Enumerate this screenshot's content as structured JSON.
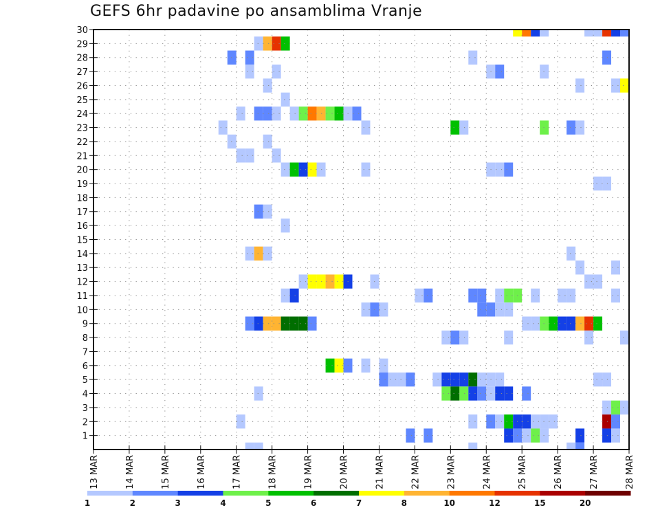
{
  "chart_data": {
    "type": "heatmap",
    "title": "GEFS 6hr padavine po ansamblima Vranje",
    "xlabel": "",
    "ylabel": "",
    "x_tick_labels": [
      "13 MAR",
      "14 MAR",
      "15 MAR",
      "16 MAR",
      "17 MAR",
      "18 MAR",
      "19 MAR",
      "20 MAR",
      "21 MAR",
      "22 MAR",
      "23 MAR",
      "24 MAR",
      "25 MAR",
      "26 MAR",
      "27 MAR",
      "28 MAR"
    ],
    "x_step_hours": 6,
    "x_slots": 60,
    "y_tick_labels": [
      "1",
      "2",
      "3",
      "4",
      "5",
      "6",
      "7",
      "8",
      "9",
      "10",
      "11",
      "12",
      "13",
      "14",
      "15",
      "16",
      "17",
      "18",
      "19",
      "20",
      "21",
      "22",
      "23",
      "24",
      "25",
      "26",
      "27",
      "28",
      "29",
      "30"
    ],
    "ylim": [
      0,
      30
    ],
    "grid": true,
    "colorbar": {
      "placement": "bottom",
      "labels": [
        "1",
        "2",
        "3",
        "4",
        "5",
        "6",
        "7",
        "8",
        "10",
        "12",
        "15",
        "20"
      ],
      "colors": [
        "#b4c8ff",
        "#5f87ff",
        "#1440e6",
        "#6ef04a",
        "#00c000",
        "#006e00",
        "#ffff00",
        "#ffb432",
        "#ff7800",
        "#e63200",
        "#aa0000",
        "#6e0000"
      ]
    },
    "cells_note": "each cell: [time_slot_index (6h steps from 13 MAR 00Z), ensemble_member_row, color_level_index]",
    "cells": [
      [
        47,
        30,
        6
      ],
      [
        48,
        30,
        8
      ],
      [
        49,
        30,
        2
      ],
      [
        50,
        30,
        0
      ],
      [
        55,
        30,
        0
      ],
      [
        56,
        30,
        0
      ],
      [
        57,
        30,
        9
      ],
      [
        58,
        30,
        2
      ],
      [
        59,
        30,
        1
      ],
      [
        18,
        29,
        0
      ],
      [
        19,
        29,
        7
      ],
      [
        20,
        29,
        9
      ],
      [
        21,
        29,
        4
      ],
      [
        15,
        28,
        1
      ],
      [
        17,
        28,
        1
      ],
      [
        42,
        28,
        0
      ],
      [
        57,
        28,
        1
      ],
      [
        17,
        27,
        0
      ],
      [
        20,
        27,
        0
      ],
      [
        44,
        27,
        0
      ],
      [
        45,
        27,
        1
      ],
      [
        50,
        27,
        0
      ],
      [
        19,
        26,
        0
      ],
      [
        54,
        26,
        0
      ],
      [
        58,
        26,
        0
      ],
      [
        59,
        26,
        6
      ],
      [
        21,
        25,
        0
      ],
      [
        16,
        24,
        0
      ],
      [
        18,
        24,
        1
      ],
      [
        19,
        24,
        1
      ],
      [
        20,
        24,
        0
      ],
      [
        22,
        24,
        0
      ],
      [
        23,
        24,
        3
      ],
      [
        24,
        24,
        8
      ],
      [
        25,
        24,
        7
      ],
      [
        26,
        24,
        3
      ],
      [
        27,
        24,
        4
      ],
      [
        28,
        24,
        0
      ],
      [
        29,
        24,
        1
      ],
      [
        14,
        23,
        0
      ],
      [
        30,
        23,
        0
      ],
      [
        40,
        23,
        4
      ],
      [
        41,
        23,
        0
      ],
      [
        50,
        23,
        3
      ],
      [
        53,
        23,
        1
      ],
      [
        54,
        23,
        0
      ],
      [
        15,
        22,
        0
      ],
      [
        19,
        22,
        0
      ],
      [
        16,
        21,
        0
      ],
      [
        17,
        21,
        0
      ],
      [
        20,
        21,
        0
      ],
      [
        21,
        20,
        0
      ],
      [
        22,
        20,
        4
      ],
      [
        23,
        20,
        2
      ],
      [
        24,
        20,
        6
      ],
      [
        25,
        20,
        0
      ],
      [
        30,
        20,
        0
      ],
      [
        44,
        20,
        0
      ],
      [
        45,
        20,
        0
      ],
      [
        46,
        20,
        1
      ],
      [
        56,
        19,
        0
      ],
      [
        57,
        19,
        0
      ],
      [
        18,
        17,
        1
      ],
      [
        19,
        17,
        0
      ],
      [
        21,
        16,
        0
      ],
      [
        17,
        14,
        0
      ],
      [
        18,
        14,
        7
      ],
      [
        19,
        14,
        0
      ],
      [
        53,
        14,
        0
      ],
      [
        54,
        13,
        0
      ],
      [
        58,
        13,
        0
      ],
      [
        23,
        12,
        0
      ],
      [
        24,
        12,
        6
      ],
      [
        25,
        12,
        6
      ],
      [
        26,
        12,
        7
      ],
      [
        27,
        12,
        6
      ],
      [
        28,
        12,
        2
      ],
      [
        31,
        12,
        0
      ],
      [
        55,
        12,
        0
      ],
      [
        56,
        12,
        0
      ],
      [
        21,
        11,
        0
      ],
      [
        22,
        11,
        2
      ],
      [
        36,
        11,
        0
      ],
      [
        37,
        11,
        1
      ],
      [
        42,
        11,
        1
      ],
      [
        43,
        11,
        1
      ],
      [
        45,
        11,
        0
      ],
      [
        46,
        11,
        3
      ],
      [
        47,
        11,
        3
      ],
      [
        49,
        11,
        0
      ],
      [
        52,
        11,
        0
      ],
      [
        53,
        11,
        0
      ],
      [
        58,
        11,
        0
      ],
      [
        30,
        10,
        0
      ],
      [
        31,
        10,
        1
      ],
      [
        32,
        10,
        0
      ],
      [
        43,
        10,
        1
      ],
      [
        44,
        10,
        1
      ],
      [
        45,
        10,
        0
      ],
      [
        46,
        10,
        0
      ],
      [
        17,
        9,
        1
      ],
      [
        18,
        9,
        2
      ],
      [
        19,
        9,
        7
      ],
      [
        20,
        9,
        7
      ],
      [
        21,
        9,
        5
      ],
      [
        22,
        9,
        5
      ],
      [
        23,
        9,
        5
      ],
      [
        24,
        9,
        1
      ],
      [
        48,
        9,
        0
      ],
      [
        49,
        9,
        0
      ],
      [
        50,
        9,
        3
      ],
      [
        51,
        9,
        4
      ],
      [
        52,
        9,
        2
      ],
      [
        53,
        9,
        2
      ],
      [
        54,
        9,
        7
      ],
      [
        55,
        9,
        9
      ],
      [
        56,
        9,
        4
      ],
      [
        39,
        8,
        0
      ],
      [
        40,
        8,
        1
      ],
      [
        41,
        8,
        0
      ],
      [
        46,
        8,
        0
      ],
      [
        55,
        8,
        0
      ],
      [
        59,
        8,
        0
      ],
      [
        26,
        6,
        4
      ],
      [
        27,
        6,
        6
      ],
      [
        28,
        6,
        1
      ],
      [
        30,
        6,
        0
      ],
      [
        32,
        6,
        0
      ],
      [
        32,
        5,
        1
      ],
      [
        33,
        5,
        0
      ],
      [
        34,
        5,
        0
      ],
      [
        35,
        5,
        1
      ],
      [
        38,
        5,
        0
      ],
      [
        39,
        5,
        2
      ],
      [
        40,
        5,
        2
      ],
      [
        41,
        5,
        2
      ],
      [
        42,
        5,
        5
      ],
      [
        43,
        5,
        0
      ],
      [
        44,
        5,
        0
      ],
      [
        45,
        5,
        0
      ],
      [
        56,
        5,
        0
      ],
      [
        57,
        5,
        0
      ],
      [
        18,
        4,
        0
      ],
      [
        39,
        4,
        3
      ],
      [
        40,
        4,
        5
      ],
      [
        41,
        4,
        3
      ],
      [
        42,
        4,
        2
      ],
      [
        43,
        4,
        1
      ],
      [
        44,
        4,
        0
      ],
      [
        45,
        4,
        2
      ],
      [
        46,
        4,
        2
      ],
      [
        48,
        4,
        1
      ],
      [
        57,
        3,
        0
      ],
      [
        58,
        3,
        3
      ],
      [
        59,
        3,
        0
      ],
      [
        16,
        2,
        0
      ],
      [
        42,
        2,
        0
      ],
      [
        44,
        2,
        1
      ],
      [
        45,
        2,
        0
      ],
      [
        46,
        2,
        4
      ],
      [
        47,
        2,
        2
      ],
      [
        48,
        2,
        2
      ],
      [
        49,
        2,
        0
      ],
      [
        50,
        2,
        0
      ],
      [
        51,
        2,
        0
      ],
      [
        57,
        2,
        10
      ],
      [
        58,
        2,
        1
      ],
      [
        35,
        1,
        1
      ],
      [
        37,
        1,
        1
      ],
      [
        46,
        1,
        2
      ],
      [
        47,
        1,
        1
      ],
      [
        48,
        1,
        0
      ],
      [
        49,
        1,
        3
      ],
      [
        50,
        1,
        0
      ],
      [
        54,
        1,
        2
      ],
      [
        57,
        1,
        2
      ],
      [
        58,
        1,
        0
      ],
      [
        17,
        0,
        0
      ],
      [
        18,
        0,
        0
      ],
      [
        42,
        0,
        0
      ],
      [
        53,
        0,
        0
      ],
      [
        54,
        0,
        1
      ]
    ]
  }
}
